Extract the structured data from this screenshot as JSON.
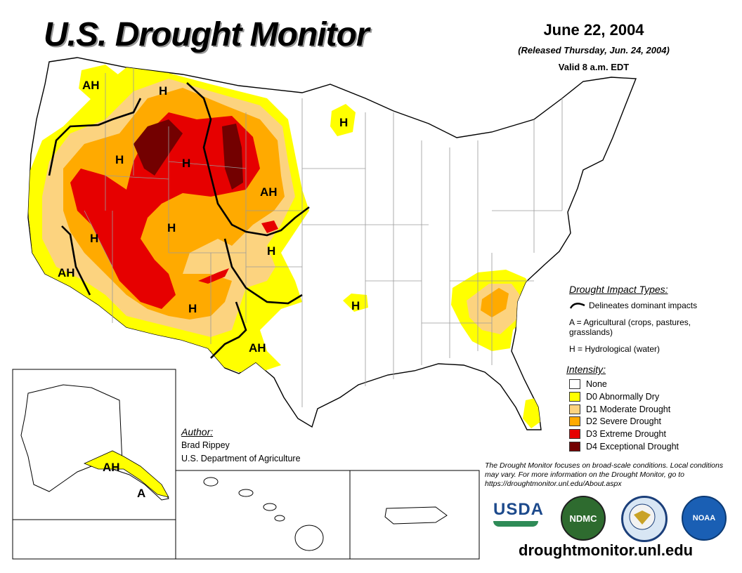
{
  "header": {
    "title": "U.S. Drought Monitor",
    "date": "June 22, 2004",
    "released": "(Released Thursday, Jun. 24, 2004)",
    "valid": "Valid 8 a.m. EDT"
  },
  "map_labels": {
    "ah_nw": "AH",
    "h_mt_west": "H",
    "h_id": "H",
    "h_wy": "H",
    "ah_sd": "AH",
    "h_mn": "H",
    "h_nv": "H",
    "h_ut": "H",
    "h_ks": "H",
    "ah_ca": "AH",
    "h_nm": "H",
    "h_ok": "H",
    "ah_tx": "AH",
    "ah_ak": "AH",
    "a_ak": "A"
  },
  "impact": {
    "title": "Drought Impact Types:",
    "delineates": "Delineates dominant impacts",
    "agricultural": "A = Agricultural (crops, pastures, grasslands)",
    "hydrological": "H = Hydrological (water)"
  },
  "intensity": {
    "title": "Intensity:",
    "levels": [
      {
        "label": "None",
        "color": "#ffffff"
      },
      {
        "label": "D0 Abnormally Dry",
        "color": "#ffff00"
      },
      {
        "label": "D1 Moderate Drought",
        "color": "#fcd37f"
      },
      {
        "label": "D2 Severe Drought",
        "color": "#ffaa00"
      },
      {
        "label": "D3 Extreme Drought",
        "color": "#e60000"
      },
      {
        "label": "D4 Exceptional Drought",
        "color": "#730000"
      }
    ]
  },
  "author": {
    "title": "Author:",
    "name": "Brad Rippey",
    "org": "U.S. Department of Agriculture"
  },
  "note": "The Drought Monitor focuses on broad-scale conditions. Local conditions may vary. For more information on the Drought Monitor, go to https://droughtmonitor.unl.edu/About.aspx",
  "logos": {
    "usda": "USDA",
    "ndmc": "NDMC",
    "noaa": "NOAA"
  },
  "url": "droughtmonitor.unl.edu"
}
